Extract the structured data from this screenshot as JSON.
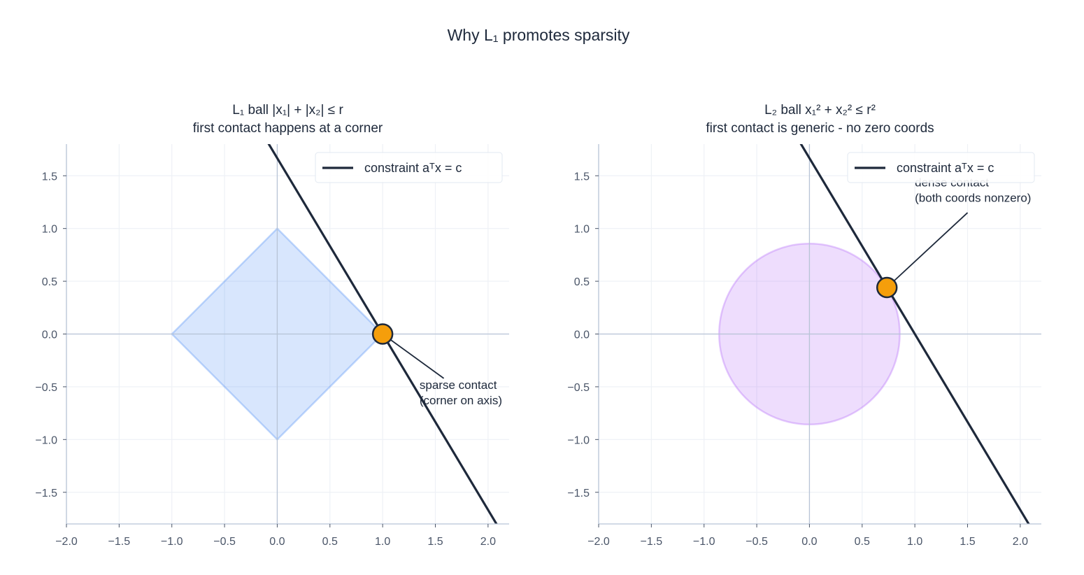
{
  "suptitle": "Why L₁ promotes sparsity",
  "chart_data": [
    {
      "type": "line",
      "title": "L₁ ball  |x₁| + |x₂| ≤ r",
      "subtitle": "first contact happens at a corner",
      "xlim": [
        -2.0,
        2.2
      ],
      "ylim": [
        -1.8,
        1.8
      ],
      "xticks": [
        -2.0,
        -1.5,
        -1.0,
        -0.5,
        0.0,
        0.5,
        1.0,
        1.5,
        2.0
      ],
      "yticks": [
        -1.5,
        -1.0,
        -0.5,
        0.0,
        0.5,
        1.0,
        1.5
      ],
      "grid": true,
      "legend": {
        "placement": "top-right",
        "entries": [
          "constraint  aᵀx = c"
        ]
      },
      "constraint": {
        "a": [
          1.0,
          0.6
        ],
        "c": 1.0,
        "color": "#1e293b"
      },
      "ball": {
        "shape": "diamond",
        "radius": 1.0,
        "fill": "#3b82f6",
        "fill_opacity": 0.2
      },
      "contact_point": {
        "x": 1.0,
        "y": 0.0,
        "color": "#f59e0b"
      },
      "annotation": {
        "lines": [
          "sparse contact",
          "(corner on axis)"
        ],
        "x": 1.35,
        "y": -0.52
      }
    },
    {
      "type": "line",
      "title": "L₂ ball  x₁² + x₂² ≤ r²",
      "subtitle": "first contact is generic - no zero coords",
      "xlim": [
        -2.0,
        2.2
      ],
      "ylim": [
        -1.8,
        1.8
      ],
      "xticks": [
        -2.0,
        -1.5,
        -1.0,
        -0.5,
        0.0,
        0.5,
        1.0,
        1.5,
        2.0
      ],
      "yticks": [
        -1.5,
        -1.0,
        -0.5,
        0.0,
        0.5,
        1.0,
        1.5
      ],
      "grid": true,
      "legend": {
        "placement": "top-right",
        "entries": [
          "constraint  aᵀx = c"
        ]
      },
      "constraint": {
        "a": [
          1.0,
          0.6
        ],
        "c": 1.0,
        "color": "#1e293b"
      },
      "ball": {
        "shape": "circle",
        "radius": 0.857,
        "fill": "#a855f7",
        "fill_opacity": 0.2
      },
      "contact_point": {
        "x": 0.735,
        "y": 0.441,
        "color": "#f59e0b"
      },
      "annotation": {
        "lines": [
          "dense contact",
          "(both coords nonzero)"
        ],
        "x": 1.0,
        "y": 1.4
      }
    }
  ]
}
